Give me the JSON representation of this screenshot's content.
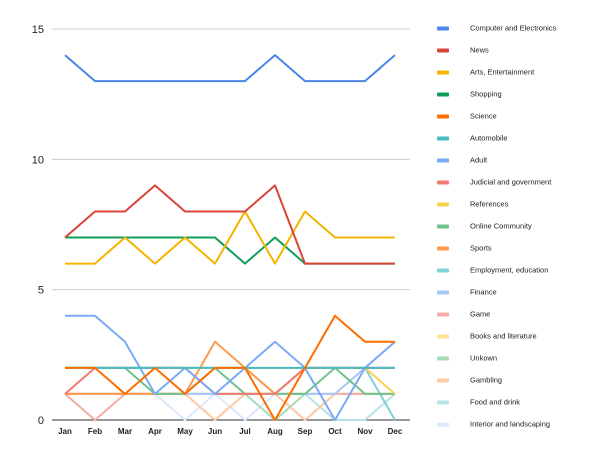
{
  "chart_data": {
    "type": "line",
    "title": "",
    "xlabel": "",
    "ylabel": "",
    "ylim": [
      0,
      15
    ],
    "yticks": [
      0,
      5,
      10,
      15
    ],
    "grid": true,
    "legend_position": "right",
    "categories": [
      "Jan",
      "Feb",
      "Mar",
      "Apr",
      "May",
      "Jun",
      "Jul",
      "Aug",
      "Sep",
      "Oct",
      "Nov",
      "Dec"
    ],
    "series": [
      {
        "name": "Computer and Electronics",
        "color": "#4a86e8",
        "values": [
          14,
          13,
          13,
          13,
          13,
          13,
          13,
          14,
          13,
          13,
          13,
          14
        ]
      },
      {
        "name": "News",
        "color": "#db4437",
        "values": [
          7,
          8,
          8,
          9,
          8,
          8,
          8,
          9,
          6,
          6,
          6,
          6
        ]
      },
      {
        "name": "Arts, Entertainment",
        "color": "#f4b400",
        "values": [
          6,
          6,
          7,
          6,
          7,
          6,
          8,
          6,
          8,
          7,
          7,
          7
        ]
      },
      {
        "name": "Shopping",
        "color": "#0f9d58",
        "values": [
          7,
          7,
          7,
          7,
          7,
          7,
          6,
          7,
          6,
          6,
          6,
          6
        ]
      },
      {
        "name": "Science",
        "color": "#ff6d00",
        "values": [
          2,
          2,
          1,
          2,
          1,
          2,
          2,
          0,
          2,
          4,
          3,
          3
        ]
      },
      {
        "name": "Automobile",
        "color": "#46bdc6",
        "values": [
          2,
          2,
          2,
          2,
          2,
          2,
          2,
          2,
          2,
          2,
          2,
          2
        ]
      },
      {
        "name": "Adult",
        "color": "#7baaf7",
        "values": [
          4,
          4,
          3,
          1,
          2,
          1,
          2,
          3,
          2,
          0,
          2,
          3
        ]
      },
      {
        "name": "Judicial and government",
        "color": "#f07b72",
        "values": [
          1,
          2,
          2,
          2,
          2,
          1,
          1,
          1,
          2,
          2,
          2,
          2
        ]
      },
      {
        "name": "References",
        "color": "#fcd04f",
        "values": [
          2,
          2,
          2,
          2,
          2,
          2,
          2,
          2,
          2,
          2,
          2,
          1
        ]
      },
      {
        "name": "Online Community",
        "color": "#71c287",
        "values": [
          2,
          2,
          2,
          1,
          1,
          2,
          1,
          1,
          1,
          2,
          1,
          1
        ]
      },
      {
        "name": "Sports",
        "color": "#ff994d",
        "values": [
          1,
          1,
          1,
          1,
          1,
          3,
          2,
          1,
          2,
          2,
          2,
          2
        ]
      },
      {
        "name": "Employment, education",
        "color": "#7ed1d7",
        "values": [
          2,
          2,
          2,
          2,
          2,
          2,
          2,
          1,
          2,
          2,
          2,
          0
        ]
      },
      {
        "name": "Finance",
        "color": "#a7c7fa",
        "values": [
          1,
          1,
          1,
          1,
          1,
          1,
          1,
          1,
          1,
          1,
          2,
          3
        ]
      },
      {
        "name": "Game",
        "color": "#f5aca6",
        "values": [
          1,
          0,
          1,
          1,
          1,
          1,
          1,
          1,
          1,
          1,
          1,
          1
        ]
      },
      {
        "name": "Books and literature",
        "color": "#fde396",
        "values": [
          1,
          1,
          1,
          1,
          1,
          1,
          1,
          1,
          1,
          1,
          1,
          1
        ]
      },
      {
        "name": "Unkown",
        "color": "#a8dab6",
        "values": [
          1,
          1,
          1,
          1,
          1,
          1,
          1,
          0,
          1,
          1,
          1,
          1
        ]
      },
      {
        "name": "Gambling",
        "color": "#ffc8a0",
        "values": [
          1,
          1,
          1,
          1,
          1,
          0,
          1,
          1,
          0,
          1,
          1,
          1
        ]
      },
      {
        "name": "Food and drink",
        "color": "#b7e3e6",
        "values": [
          1,
          1,
          1,
          1,
          1,
          1,
          1,
          1,
          1,
          0,
          0,
          1
        ]
      },
      {
        "name": "Interior and landscaping",
        "color": "#dbe8fc",
        "values": [
          1,
          1,
          1,
          1,
          0,
          1,
          0,
          1,
          1,
          1,
          1,
          1
        ]
      }
    ]
  }
}
